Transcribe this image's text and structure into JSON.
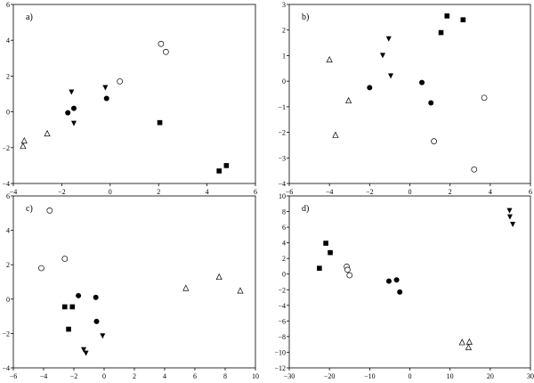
{
  "chart_data": [
    {
      "type": "scatter",
      "panel_label": "a)",
      "xlim": [
        -4,
        6
      ],
      "ylim": [
        -4,
        6
      ],
      "xticks": [
        -4,
        -2,
        0,
        2,
        4,
        6
      ],
      "yticks": [
        -4,
        -2,
        0,
        2,
        4,
        6
      ],
      "series": [
        {
          "marker": "circle-filled",
          "points": [
            [
              -1.75,
              -0.05
            ],
            [
              -1.5,
              0.2
            ],
            [
              -0.15,
              0.75
            ]
          ]
        },
        {
          "marker": "circle-open",
          "points": [
            [
              2.1,
              3.8
            ],
            [
              2.3,
              3.35
            ],
            [
              0.4,
              1.7
            ]
          ]
        },
        {
          "marker": "triangle-down",
          "points": [
            [
              -1.6,
              1.1
            ],
            [
              -1.5,
              -0.65
            ],
            [
              -0.2,
              1.35
            ]
          ]
        },
        {
          "marker": "triangle-up-open",
          "points": [
            [
              -3.55,
              -1.6
            ],
            [
              -3.6,
              -1.9
            ],
            [
              -2.6,
              -1.2
            ]
          ]
        },
        {
          "marker": "square",
          "points": [
            [
              2.05,
              -0.6
            ],
            [
              4.5,
              -3.3
            ],
            [
              4.8,
              -3.0
            ]
          ]
        }
      ]
    },
    {
      "type": "scatter",
      "panel_label": "b)",
      "xlim": [
        -6,
        6
      ],
      "ylim": [
        -4,
        3
      ],
      "xticks": [
        -6,
        -4,
        -2,
        0,
        2,
        4,
        6
      ],
      "yticks": [
        -4,
        -3,
        -2,
        -1,
        0,
        1,
        2,
        3
      ],
      "series": [
        {
          "marker": "circle-filled",
          "points": [
            [
              -2.0,
              -0.25
            ],
            [
              0.6,
              -0.05
            ],
            [
              1.05,
              -0.85
            ]
          ]
        },
        {
          "marker": "circle-open",
          "points": [
            [
              3.7,
              -0.65
            ],
            [
              1.2,
              -2.35
            ],
            [
              3.2,
              -3.45
            ]
          ]
        },
        {
          "marker": "triangle-down",
          "points": [
            [
              -1.05,
              1.65
            ],
            [
              -1.35,
              1.0
            ],
            [
              -0.95,
              0.2
            ]
          ]
        },
        {
          "marker": "triangle-up-open",
          "points": [
            [
              -4.0,
              0.85
            ],
            [
              -3.05,
              -0.75
            ],
            [
              -3.7,
              -2.1
            ]
          ]
        },
        {
          "marker": "square",
          "points": [
            [
              1.85,
              2.55
            ],
            [
              2.65,
              2.4
            ],
            [
              1.55,
              1.9
            ]
          ]
        }
      ]
    },
    {
      "type": "scatter",
      "panel_label": "c)",
      "xlim": [
        -6,
        10
      ],
      "ylim": [
        -4,
        6
      ],
      "xticks": [
        -6,
        -4,
        -2,
        0,
        2,
        4,
        6,
        8,
        10
      ],
      "yticks": [
        -4,
        -2,
        0,
        2,
        4,
        6
      ],
      "series": [
        {
          "marker": "circle-filled",
          "points": [
            [
              -1.7,
              0.2
            ],
            [
              -0.55,
              0.1
            ],
            [
              -0.5,
              -1.3
            ]
          ]
        },
        {
          "marker": "circle-open",
          "points": [
            [
              -3.6,
              5.15
            ],
            [
              -2.6,
              2.35
            ],
            [
              -4.15,
              1.8
            ]
          ]
        },
        {
          "marker": "triangle-down",
          "points": [
            [
              -1.35,
              -2.95
            ],
            [
              -1.2,
              -3.15
            ],
            [
              -0.1,
              -2.15
            ]
          ]
        },
        {
          "marker": "triangle-up-open",
          "points": [
            [
              5.4,
              0.65
            ],
            [
              7.6,
              1.3
            ],
            [
              9.0,
              0.5
            ]
          ]
        },
        {
          "marker": "square",
          "points": [
            [
              -2.6,
              -0.45
            ],
            [
              -2.1,
              -0.45
            ],
            [
              -2.35,
              -1.75
            ]
          ]
        }
      ]
    },
    {
      "type": "scatter",
      "panel_label": "d)",
      "xlim": [
        -30,
        30
      ],
      "ylim": [
        -12,
        10
      ],
      "xticks": [
        -30,
        -20,
        -10,
        0,
        10,
        20,
        30
      ],
      "yticks": [
        -12,
        -10,
        -8,
        -6,
        -4,
        -2,
        0,
        2,
        4,
        6,
        8,
        10
      ],
      "series": [
        {
          "marker": "circle-filled",
          "points": [
            [
              -5.2,
              -0.9
            ],
            [
              -3.3,
              -0.75
            ],
            [
              -2.5,
              -2.3
            ]
          ]
        },
        {
          "marker": "circle-open",
          "points": [
            [
              -15.7,
              0.95
            ],
            [
              -15.5,
              0.55
            ],
            [
              -15.0,
              -0.15
            ]
          ]
        },
        {
          "marker": "triangle-down",
          "points": [
            [
              24.8,
              8.1
            ],
            [
              24.9,
              7.3
            ],
            [
              25.6,
              6.35
            ]
          ]
        },
        {
          "marker": "triangle-up-open",
          "points": [
            [
              13.0,
              -8.7
            ],
            [
              14.8,
              -8.65
            ],
            [
              14.6,
              -9.35
            ]
          ]
        },
        {
          "marker": "square",
          "points": [
            [
              -20.9,
              3.95
            ],
            [
              -19.8,
              2.75
            ],
            [
              -22.5,
              0.75
            ]
          ]
        }
      ]
    }
  ]
}
